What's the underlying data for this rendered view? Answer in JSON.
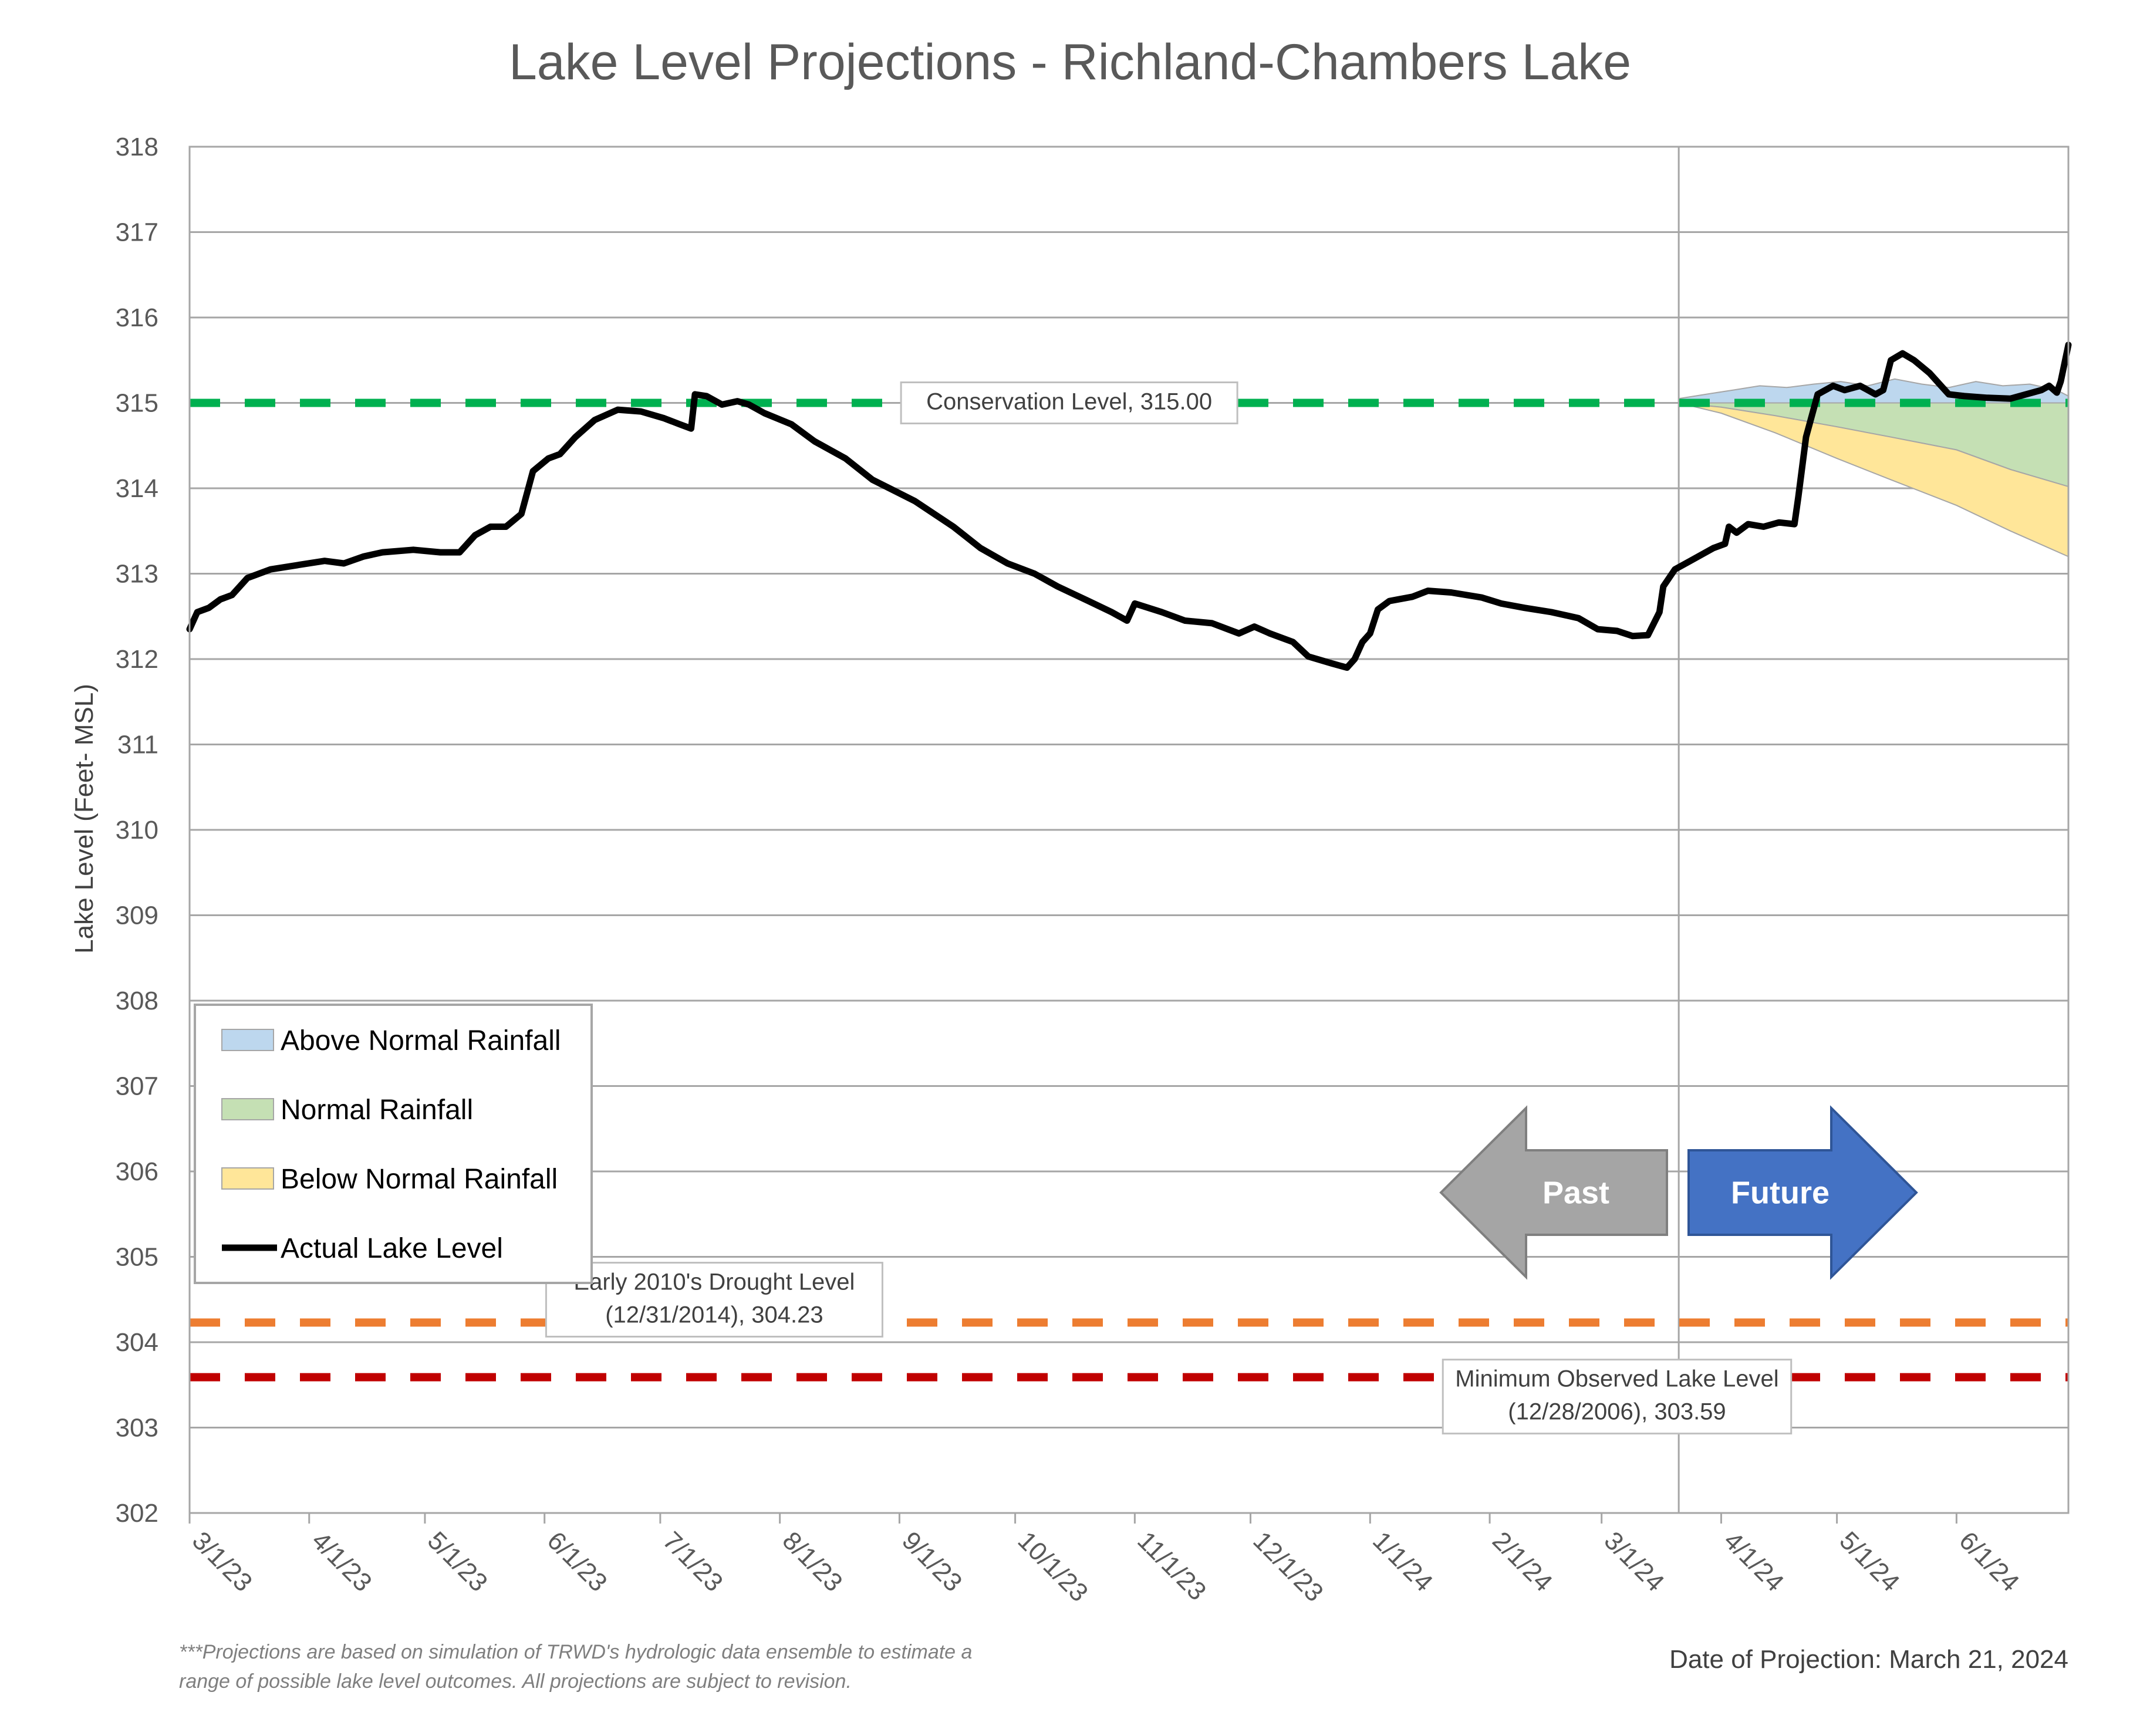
{
  "chart_data": {
    "type": "line",
    "title": "Lake Level Projections - Richland-Chambers Lake",
    "ylabel": "Lake Level (Feet- MSL)",
    "xlabel": "",
    "ylim": [
      302,
      318
    ],
    "y_ticks": [
      "302",
      "303",
      "304",
      "305",
      "306",
      "307",
      "308",
      "309",
      "310",
      "311",
      "312",
      "313",
      "314",
      "315",
      "316",
      "317",
      "318"
    ],
    "x_range": [
      "2023-03-01",
      "2024-06-30"
    ],
    "x_ticks": [
      {
        "date": "2023-03-01",
        "label": "3/1/23"
      },
      {
        "date": "2023-04-01",
        "label": "4/1/23"
      },
      {
        "date": "2023-05-01",
        "label": "5/1/23"
      },
      {
        "date": "2023-06-01",
        "label": "6/1/23"
      },
      {
        "date": "2023-07-01",
        "label": "7/1/23"
      },
      {
        "date": "2023-08-01",
        "label": "8/1/23"
      },
      {
        "date": "2023-09-01",
        "label": "9/1/23"
      },
      {
        "date": "2023-10-01",
        "label": "10/1/23"
      },
      {
        "date": "2023-11-01",
        "label": "11/1/23"
      },
      {
        "date": "2023-12-01",
        "label": "12/1/23"
      },
      {
        "date": "2024-01-01",
        "label": "1/1/24"
      },
      {
        "date": "2024-02-01",
        "label": "2/1/24"
      },
      {
        "date": "2024-03-01",
        "label": "3/1/24"
      },
      {
        "date": "2024-04-01",
        "label": "4/1/24"
      },
      {
        "date": "2024-05-01",
        "label": "5/1/24"
      },
      {
        "date": "2024-06-01",
        "label": "6/1/24"
      }
    ],
    "grid": "horizontal",
    "projection_start": "2024-03-21",
    "legend_position": "lower-left",
    "series": [
      {
        "name": "Actual Lake Level",
        "type": "line",
        "color": "#000000",
        "points": [
          [
            "2023-03-01",
            312.35
          ],
          [
            "2023-03-03",
            312.55
          ],
          [
            "2023-03-06",
            312.6
          ],
          [
            "2023-03-09",
            312.7
          ],
          [
            "2023-03-12",
            312.75
          ],
          [
            "2023-03-16",
            312.95
          ],
          [
            "2023-03-22",
            313.05
          ],
          [
            "2023-03-29",
            313.1
          ],
          [
            "2023-04-05",
            313.15
          ],
          [
            "2023-04-10",
            313.12
          ],
          [
            "2023-04-15",
            313.2
          ],
          [
            "2023-04-20",
            313.25
          ],
          [
            "2023-04-28",
            313.28
          ],
          [
            "2023-05-05",
            313.25
          ],
          [
            "2023-05-10",
            313.25
          ],
          [
            "2023-05-14",
            313.45
          ],
          [
            "2023-05-18",
            313.55
          ],
          [
            "2023-05-22",
            313.55
          ],
          [
            "2023-05-26",
            313.7
          ],
          [
            "2023-05-29",
            314.2
          ],
          [
            "2023-06-02",
            314.35
          ],
          [
            "2023-06-05",
            314.4
          ],
          [
            "2023-06-09",
            314.6
          ],
          [
            "2023-06-14",
            314.8
          ],
          [
            "2023-06-20",
            314.92
          ],
          [
            "2023-06-26",
            314.9
          ],
          [
            "2023-07-02",
            314.82
          ],
          [
            "2023-07-06",
            314.75
          ],
          [
            "2023-07-09",
            314.7
          ],
          [
            "2023-07-10",
            315.1
          ],
          [
            "2023-07-13",
            315.08
          ],
          [
            "2023-07-17",
            314.98
          ],
          [
            "2023-07-21",
            315.02
          ],
          [
            "2023-07-24",
            314.98
          ],
          [
            "2023-07-28",
            314.88
          ],
          [
            "2023-08-04",
            314.75
          ],
          [
            "2023-08-10",
            314.55
          ],
          [
            "2023-08-18",
            314.35
          ],
          [
            "2023-08-25",
            314.1
          ],
          [
            "2023-09-05",
            313.85
          ],
          [
            "2023-09-15",
            313.55
          ],
          [
            "2023-09-22",
            313.3
          ],
          [
            "2023-09-29",
            313.12
          ],
          [
            "2023-10-06",
            313.0
          ],
          [
            "2023-10-12",
            312.85
          ],
          [
            "2023-10-20",
            312.68
          ],
          [
            "2023-10-26",
            312.55
          ],
          [
            "2023-10-30",
            312.45
          ],
          [
            "2023-11-01",
            312.65
          ],
          [
            "2023-11-08",
            312.55
          ],
          [
            "2023-11-14",
            312.45
          ],
          [
            "2023-11-21",
            312.42
          ],
          [
            "2023-11-28",
            312.3
          ],
          [
            "2023-12-02",
            312.38
          ],
          [
            "2023-12-06",
            312.3
          ],
          [
            "2023-12-12",
            312.2
          ],
          [
            "2023-12-16",
            312.03
          ],
          [
            "2023-12-22",
            311.95
          ],
          [
            "2023-12-26",
            311.9
          ],
          [
            "2023-12-28",
            312.0
          ],
          [
            "2023-12-30",
            312.2
          ],
          [
            "2024-01-01",
            312.3
          ],
          [
            "2024-01-03",
            312.58
          ],
          [
            "2024-01-06",
            312.68
          ],
          [
            "2024-01-12",
            312.73
          ],
          [
            "2024-01-16",
            312.8
          ],
          [
            "2024-01-22",
            312.78
          ],
          [
            "2024-01-30",
            312.72
          ],
          [
            "2024-02-04",
            312.65
          ],
          [
            "2024-02-10",
            312.6
          ],
          [
            "2024-02-17",
            312.55
          ],
          [
            "2024-02-24",
            312.48
          ],
          [
            "2024-02-29",
            312.35
          ],
          [
            "2024-03-05",
            312.33
          ],
          [
            "2024-03-09",
            312.27
          ],
          [
            "2024-03-13",
            312.28
          ],
          [
            "2024-03-16",
            312.55
          ],
          [
            "2024-03-17",
            312.85
          ],
          [
            "2024-03-20",
            313.05
          ],
          [
            "2024-03-24",
            313.15
          ],
          [
            "2024-03-30",
            313.3
          ],
          [
            "2024-04-02",
            313.35
          ],
          [
            "2024-04-03",
            313.55
          ],
          [
            "2024-04-05",
            313.48
          ],
          [
            "2024-04-08",
            313.58
          ],
          [
            "2024-04-12",
            313.55
          ],
          [
            "2024-04-16",
            313.6
          ],
          [
            "2024-04-20",
            313.58
          ],
          [
            "2024-04-21",
            313.9
          ],
          [
            "2024-04-23",
            314.6
          ],
          [
            "2024-04-26",
            315.1
          ],
          [
            "2024-04-30",
            315.2
          ],
          [
            "2024-05-03",
            315.15
          ],
          [
            "2024-05-07",
            315.2
          ],
          [
            "2024-05-11",
            315.1
          ],
          [
            "2024-05-13",
            315.15
          ],
          [
            "2024-05-15",
            315.5
          ],
          [
            "2024-05-18",
            315.58
          ],
          [
            "2024-05-21",
            315.5
          ],
          [
            "2024-05-25",
            315.35
          ],
          [
            "2024-05-30",
            315.1
          ],
          [
            "2024-06-03",
            315.08
          ],
          [
            "2024-06-09",
            315.06
          ],
          [
            "2024-06-15",
            315.05
          ],
          [
            "2024-06-19",
            315.1
          ],
          [
            "2024-06-23",
            315.15
          ],
          [
            "2024-06-25",
            315.2
          ],
          [
            "2024-06-27",
            315.12
          ],
          [
            "2024-06-28",
            315.25
          ],
          [
            "2024-06-30",
            315.68
          ]
        ]
      },
      {
        "name": "Above Normal Rainfall",
        "type": "band",
        "color": "#bdd7ee",
        "edge": "#a6a6a6",
        "upper": [
          [
            "2024-03-21",
            315.05
          ],
          [
            "2024-03-28",
            315.1
          ],
          [
            "2024-04-04",
            315.15
          ],
          [
            "2024-04-11",
            315.2
          ],
          [
            "2024-04-18",
            315.18
          ],
          [
            "2024-04-25",
            315.22
          ],
          [
            "2024-05-02",
            315.25
          ],
          [
            "2024-05-09",
            315.2
          ],
          [
            "2024-05-16",
            315.28
          ],
          [
            "2024-05-23",
            315.22
          ],
          [
            "2024-05-30",
            315.18
          ],
          [
            "2024-06-06",
            315.25
          ],
          [
            "2024-06-13",
            315.2
          ],
          [
            "2024-06-20",
            315.22
          ],
          [
            "2024-06-27",
            315.15
          ],
          [
            "2024-06-30",
            315.08
          ]
        ],
        "lower": [
          [
            "2024-03-21",
            315.0
          ],
          [
            "2024-06-30",
            315.0
          ]
        ]
      },
      {
        "name": "Normal Rainfall",
        "type": "band",
        "color": "#c5e0b4",
        "edge": "#a6a6a6",
        "upper": [
          [
            "2024-03-21",
            315.0
          ],
          [
            "2024-06-30",
            315.0
          ]
        ],
        "lower": [
          [
            "2024-03-21",
            315.0
          ],
          [
            "2024-04-01",
            314.95
          ],
          [
            "2024-04-15",
            314.85
          ],
          [
            "2024-05-01",
            314.72
          ],
          [
            "2024-05-15",
            314.6
          ],
          [
            "2024-06-01",
            314.45
          ],
          [
            "2024-06-15",
            314.22
          ],
          [
            "2024-06-30",
            314.02
          ]
        ]
      },
      {
        "name": "Below Normal Rainfall",
        "type": "band",
        "color": "#ffe699",
        "edge": "#a6a6a6",
        "upper": [
          [
            "2024-03-21",
            315.0
          ],
          [
            "2024-04-01",
            314.95
          ],
          [
            "2024-04-15",
            314.85
          ],
          [
            "2024-05-01",
            314.72
          ],
          [
            "2024-05-15",
            314.6
          ],
          [
            "2024-06-01",
            314.45
          ],
          [
            "2024-06-15",
            314.22
          ],
          [
            "2024-06-30",
            314.02
          ]
        ],
        "lower": [
          [
            "2024-03-21",
            315.0
          ],
          [
            "2024-04-01",
            314.88
          ],
          [
            "2024-04-15",
            314.65
          ],
          [
            "2024-05-01",
            314.35
          ],
          [
            "2024-05-15",
            314.1
          ],
          [
            "2024-06-01",
            313.8
          ],
          [
            "2024-06-15",
            313.5
          ],
          [
            "2024-06-30",
            313.2
          ]
        ]
      }
    ],
    "reference_lines": [
      {
        "name": "Conservation Level",
        "value": 315.0,
        "color": "#00b050",
        "label_lines": [
          "Conservation Level, 315.00"
        ],
        "label_date": "2023-10-15"
      },
      {
        "name": "Early 2010's Drought Level",
        "value": 304.23,
        "color": "#ed7d31",
        "label_lines": [
          "Early 2010's Drought Level",
          "(12/31/2014), 304.23"
        ],
        "label_date": "2023-07-15"
      },
      {
        "name": "Minimum Observed Lake Level",
        "value": 303.59,
        "color": "#c00000",
        "label_lines": [
          "Minimum Observed Lake Level",
          "(12/28/2006), 303.59"
        ],
        "label_date": "2024-03-05"
      }
    ],
    "legend": [
      {
        "label": "Above Normal Rainfall",
        "kind": "patch",
        "color": "#bdd7ee"
      },
      {
        "label": "Normal Rainfall",
        "kind": "patch",
        "color": "#c5e0b4"
      },
      {
        "label": "Below Normal Rainfall",
        "kind": "patch",
        "color": "#ffe699"
      },
      {
        "label": "Actual Lake Level",
        "kind": "line",
        "color": "#000000"
      }
    ],
    "arrows": [
      {
        "label": "Past",
        "direction": "left",
        "color": "#a5a5a5"
      },
      {
        "label": "Future",
        "direction": "right",
        "color": "#4472c4"
      }
    ],
    "footnote": [
      "***Projections are based on simulation of TRWD's hydrologic data ensemble to estimate a",
      "range of possible lake level outcomes.  All projections are subject to revision."
    ],
    "projection_date_text": "Date of Projection: March 21, 2024"
  }
}
